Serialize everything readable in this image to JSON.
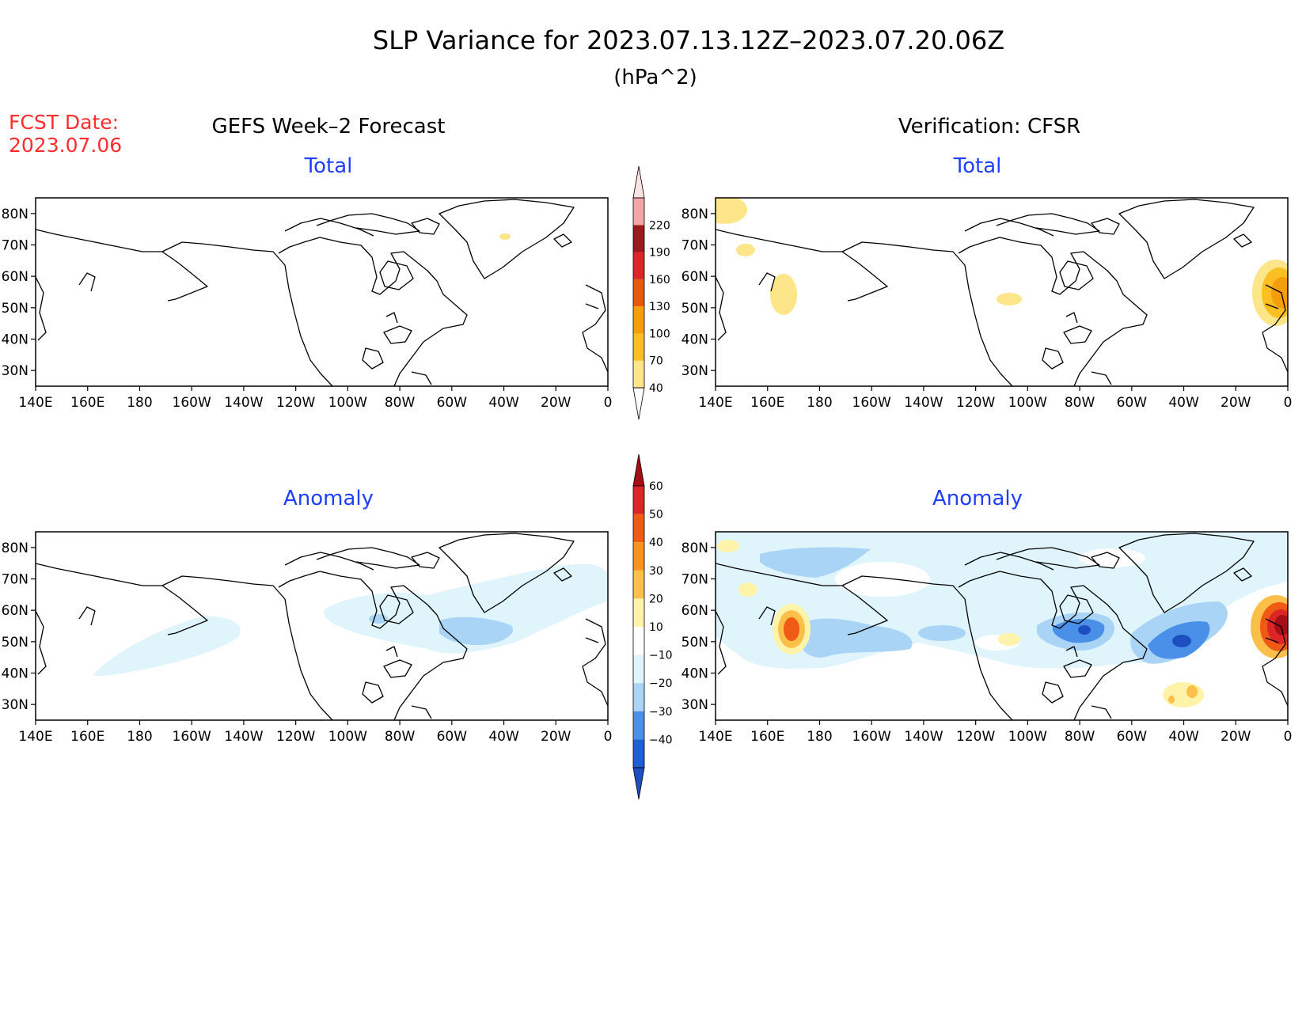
{
  "header": {
    "title": "SLP Variance for 2023.07.13.12Z–2023.07.20.06Z",
    "units": "(hPa^2)"
  },
  "forecast_date": {
    "label": "FCST Date:",
    "value": "2023.07.06"
  },
  "columns": {
    "left": "GEFS Week–2 Forecast",
    "right": "Verification: CFSR"
  },
  "panel_titles": {
    "total": "Total",
    "anomaly": "Anomaly"
  },
  "axes": {
    "lon_ticks": [
      "140E",
      "160E",
      "180",
      "160W",
      "140W",
      "120W",
      "100W",
      "80W",
      "60W",
      "40W",
      "20W",
      "0"
    ],
    "lat_ticks": [
      "80N",
      "70N",
      "60N",
      "50N",
      "40N",
      "30N"
    ],
    "lon_range": [
      140,
      360
    ],
    "lat_range": [
      25,
      85
    ]
  },
  "colorbars": {
    "total": {
      "labels": [
        "40",
        "70",
        "100",
        "130",
        "160",
        "190",
        "220"
      ],
      "colors": [
        "#fde68a",
        "#fbbf24",
        "#f59e0b",
        "#ea580c",
        "#dc2626",
        "#991b1b",
        "#f4a6a6",
        "#fbe3e3"
      ]
    },
    "anomaly": {
      "labels": [
        "60",
        "50",
        "40",
        "30",
        "20",
        "10",
        "−10",
        "−20",
        "−30",
        "−40"
      ],
      "colors": [
        "#a50f15",
        "#dc2626",
        "#f05a14",
        "#f7931e",
        "#fbbf4a",
        "#fef3a8",
        "#ffffff",
        "#dff5fb",
        "#a9d4f5",
        "#4a8fe8",
        "#1f5fd6",
        "#1e4fc0"
      ]
    }
  },
  "colors": {
    "title": "#000000",
    "forecast_date": "#ff2d2d",
    "panel_title": "#1f3fff",
    "coast": "#000000"
  }
}
